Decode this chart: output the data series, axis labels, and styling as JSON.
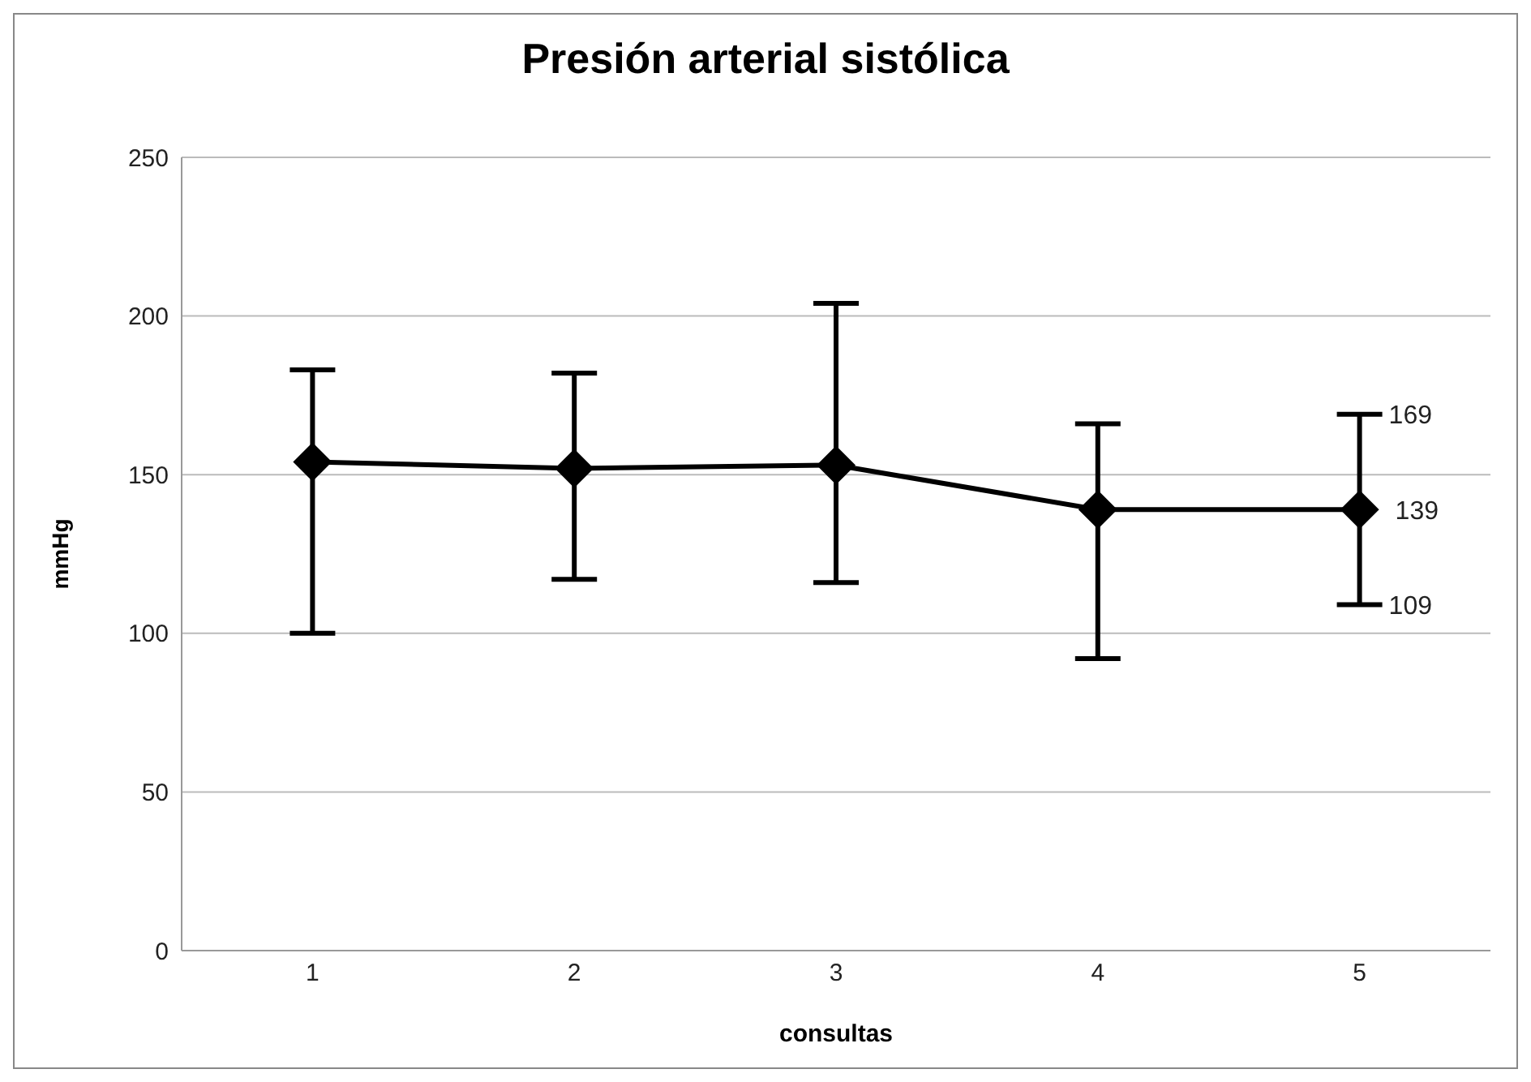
{
  "chart_data": {
    "type": "line",
    "title": "Presión arterial sistólica",
    "xlabel": "consultas",
    "ylabel": "mmHg",
    "categories": [
      "1",
      "2",
      "3",
      "4",
      "5"
    ],
    "series": [
      {
        "color": "#000000",
        "values": [
          154,
          152,
          153,
          139,
          139
        ],
        "errors": [
          [
            100,
            183
          ],
          [
            117,
            182
          ],
          [
            116,
            204
          ],
          [
            92,
            166
          ],
          [
            109,
            169
          ]
        ],
        "value_labels": [
          null,
          null,
          null,
          null,
          "139"
        ]
      }
    ],
    "annotations": [
      {
        "text": "169",
        "x": "5",
        "y": 169
      },
      {
        "text": "109",
        "x": "5",
        "y": 109
      }
    ],
    "ylim": [
      0,
      250
    ],
    "yticks": [
      0,
      50,
      100,
      150,
      200,
      250
    ],
    "grid": "y",
    "marker": "diamond",
    "line_style": "solid"
  }
}
